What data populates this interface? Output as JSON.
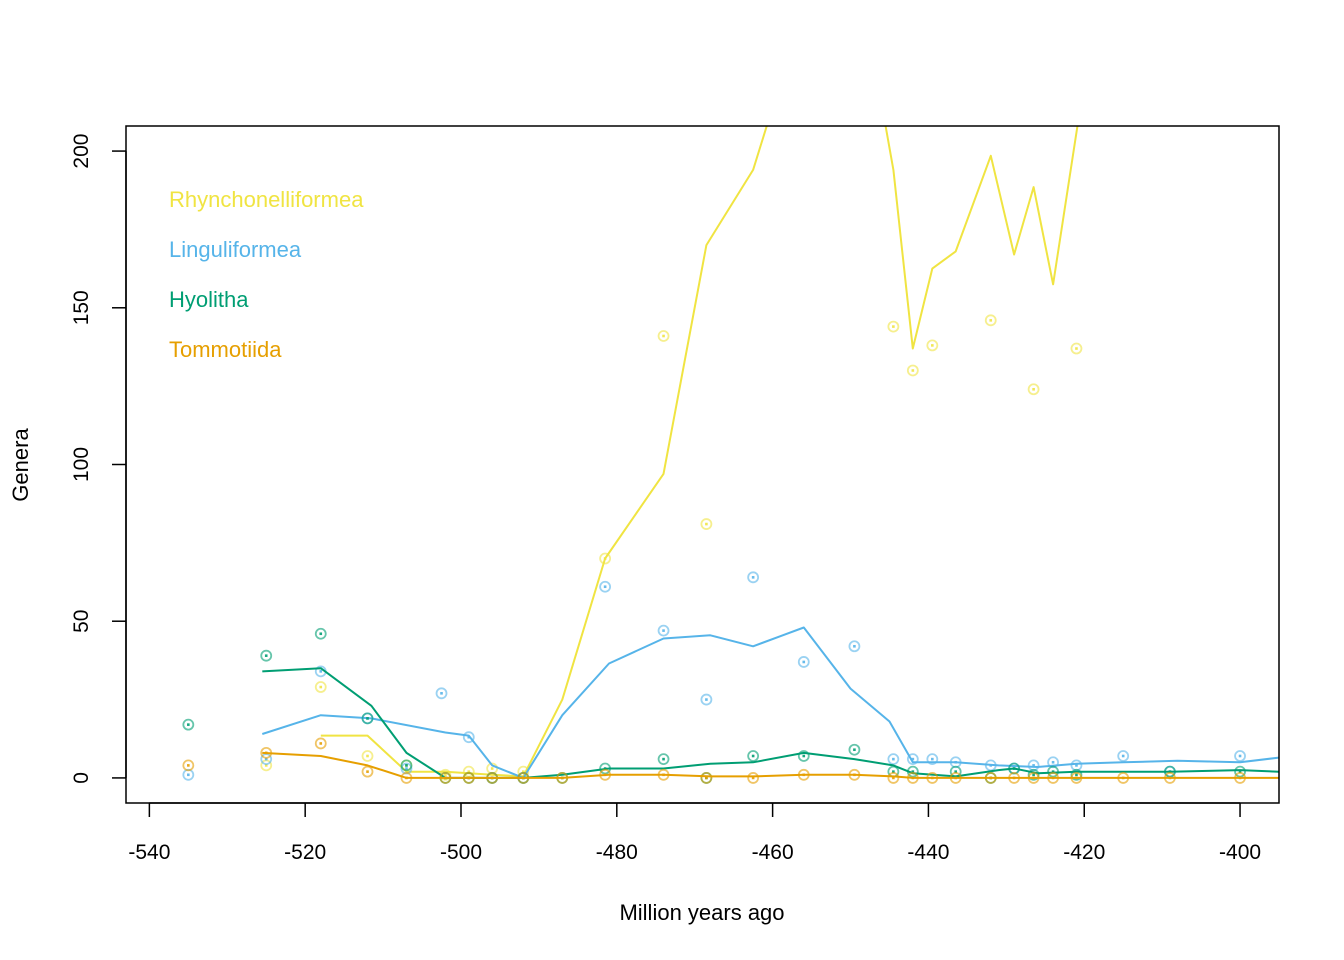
{
  "chart_data": {
    "type": "line",
    "title": "",
    "xlabel": "Million years ago",
    "ylabel": "Genera",
    "xlim": [
      -543,
      -395
    ],
    "ylim": [
      -8,
      208
    ],
    "xticks": [
      -540,
      -520,
      -500,
      -480,
      -460,
      -440,
      -420,
      -400
    ],
    "yticks": [
      0,
      50,
      100,
      150,
      200
    ],
    "grid": false,
    "legend_position": "top-left",
    "series": [
      {
        "name": "Rhynchonelliformea",
        "color": "#F0E442",
        "line": [
          [
            -518,
            13.5
          ],
          [
            -512,
            13.5
          ],
          [
            -507,
            2
          ],
          [
            -502,
            2
          ],
          [
            -499,
            1.5
          ],
          [
            -496,
            1
          ],
          [
            -492,
            0.5
          ],
          [
            -487,
            25
          ],
          [
            -481.5,
            70
          ],
          [
            -474,
            97
          ],
          [
            -468.5,
            170
          ],
          [
            -462.5,
            194
          ],
          [
            -459,
            222
          ],
          [
            -449,
            222
          ],
          [
            -446,
            215
          ],
          [
            -444.5,
            194
          ],
          [
            -442,
            137
          ],
          [
            -439.5,
            162.5
          ],
          [
            -436.5,
            168
          ],
          [
            -432,
            198.5
          ],
          [
            -429,
            167
          ],
          [
            -426.5,
            188.5
          ],
          [
            -424,
            157.5
          ],
          [
            -420,
            222
          ]
        ],
        "points": [
          [
            -525,
            4
          ],
          [
            -518,
            29
          ],
          [
            -512,
            7
          ],
          [
            -507,
            4
          ],
          [
            -502,
            1
          ],
          [
            -499,
            2
          ],
          [
            -496,
            3
          ],
          [
            -492,
            2
          ],
          [
            -481.5,
            70
          ],
          [
            -474,
            141
          ],
          [
            -468.5,
            81
          ],
          [
            -444.5,
            144
          ],
          [
            -442,
            130
          ],
          [
            -439.5,
            138
          ],
          [
            -432,
            146
          ],
          [
            -426.5,
            124
          ],
          [
            -421,
            137
          ]
        ]
      },
      {
        "name": "Linguliformea",
        "color": "#56B4E9",
        "line": [
          [
            -525.5,
            14
          ],
          [
            -518,
            20
          ],
          [
            -511.5,
            19
          ],
          [
            -502,
            14.5
          ],
          [
            -499,
            13.5
          ],
          [
            -496,
            4
          ],
          [
            -492,
            0
          ],
          [
            -487,
            20
          ],
          [
            -481,
            36.5
          ],
          [
            -474,
            44.5
          ],
          [
            -468,
            45.5
          ],
          [
            -462.5,
            42
          ],
          [
            -456,
            48
          ],
          [
            -450,
            28.5
          ],
          [
            -445,
            18
          ],
          [
            -442,
            5
          ],
          [
            -436.5,
            5
          ],
          [
            -431,
            4
          ],
          [
            -426,
            3.5
          ],
          [
            -421,
            4.5
          ],
          [
            -415,
            5
          ],
          [
            -408,
            5.5
          ],
          [
            -400,
            5
          ],
          [
            -395,
            6.5
          ]
        ],
        "points": [
          [
            -535,
            1
          ],
          [
            -525,
            6
          ],
          [
            -518,
            34
          ],
          [
            -512,
            19
          ],
          [
            -507,
            3
          ],
          [
            -502.5,
            27
          ],
          [
            -499,
            13
          ],
          [
            -496,
            0
          ],
          [
            -492,
            0
          ],
          [
            -481.5,
            61
          ],
          [
            -474,
            47
          ],
          [
            -468.5,
            25
          ],
          [
            -462.5,
            64
          ],
          [
            -456,
            37
          ],
          [
            -449.5,
            42
          ],
          [
            -444.5,
            6
          ],
          [
            -442,
            6
          ],
          [
            -439.5,
            6
          ],
          [
            -436.5,
            5
          ],
          [
            -432,
            4
          ],
          [
            -429,
            3
          ],
          [
            -426.5,
            4
          ],
          [
            -424,
            5
          ],
          [
            -421,
            4
          ],
          [
            -415,
            7
          ],
          [
            -409,
            2
          ],
          [
            -400,
            7
          ]
        ]
      },
      {
        "name": "Hyolitha",
        "color": "#009E73",
        "line": [
          [
            -525.5,
            34
          ],
          [
            -518,
            35
          ],
          [
            -511.5,
            23
          ],
          [
            -507,
            8
          ],
          [
            -502,
            0
          ],
          [
            -499,
            0
          ],
          [
            -496,
            0
          ],
          [
            -492,
            0
          ],
          [
            -487,
            1
          ],
          [
            -481,
            3
          ],
          [
            -474,
            3
          ],
          [
            -468,
            4.5
          ],
          [
            -462.5,
            5
          ],
          [
            -456,
            8
          ],
          [
            -449.5,
            6
          ],
          [
            -444.5,
            4
          ],
          [
            -442,
            1.5
          ],
          [
            -436.5,
            0.5
          ],
          [
            -431,
            2.5
          ],
          [
            -429,
            3
          ],
          [
            -426,
            1.5
          ],
          [
            -421,
            2
          ],
          [
            -415,
            2
          ],
          [
            -409,
            2
          ],
          [
            -400,
            2.5
          ],
          [
            -395,
            2
          ]
        ],
        "points": [
          [
            -535,
            17
          ],
          [
            -525,
            39
          ],
          [
            -518,
            46
          ],
          [
            -512,
            19
          ],
          [
            -507,
            4
          ],
          [
            -502,
            0
          ],
          [
            -499,
            0
          ],
          [
            -496,
            0
          ],
          [
            -492,
            0
          ],
          [
            -487,
            0
          ],
          [
            -481.5,
            3
          ],
          [
            -474,
            6
          ],
          [
            -468.5,
            0
          ],
          [
            -462.5,
            7
          ],
          [
            -456,
            7
          ],
          [
            -449.5,
            9
          ],
          [
            -444.5,
            2
          ],
          [
            -442,
            2
          ],
          [
            -436.5,
            2
          ],
          [
            -432,
            0
          ],
          [
            -429,
            3
          ],
          [
            -426.5,
            1
          ],
          [
            -424,
            2
          ],
          [
            -421,
            1
          ],
          [
            -409,
            2
          ],
          [
            -400,
            2
          ]
        ]
      },
      {
        "name": "Tommotiida",
        "color": "#E69F00",
        "line": [
          [
            -525.5,
            8
          ],
          [
            -518,
            7
          ],
          [
            -512,
            4
          ],
          [
            -507,
            0
          ],
          [
            -502,
            0
          ],
          [
            -499,
            0
          ],
          [
            -496,
            0
          ],
          [
            -492,
            0
          ],
          [
            -487,
            0
          ],
          [
            -481,
            1
          ],
          [
            -474,
            1
          ],
          [
            -468,
            0.5
          ],
          [
            -462.5,
            0.5
          ],
          [
            -456,
            1
          ],
          [
            -449.5,
            1
          ],
          [
            -444.5,
            0.5
          ],
          [
            -442,
            0
          ],
          [
            -436.5,
            0
          ],
          [
            -400,
            0
          ],
          [
            -395,
            0
          ]
        ],
        "points": [
          [
            -535,
            4
          ],
          [
            -525,
            8
          ],
          [
            -518,
            11
          ],
          [
            -512,
            2
          ],
          [
            -507,
            0
          ],
          [
            -502,
            0
          ],
          [
            -499,
            0
          ],
          [
            -496,
            0
          ],
          [
            -492,
            0
          ],
          [
            -487,
            0
          ],
          [
            -481.5,
            1
          ],
          [
            -474,
            1
          ],
          [
            -468.5,
            0
          ],
          [
            -462.5,
            0
          ],
          [
            -456,
            1
          ],
          [
            -449.5,
            1
          ],
          [
            -444.5,
            0
          ],
          [
            -442,
            0
          ],
          [
            -439.5,
            0
          ],
          [
            -436.5,
            0
          ],
          [
            -432,
            0
          ],
          [
            -429,
            0
          ],
          [
            -426.5,
            0
          ],
          [
            -424,
            0
          ],
          [
            -421,
            0
          ],
          [
            -415,
            0
          ],
          [
            -409,
            0
          ],
          [
            -400,
            0
          ]
        ]
      }
    ]
  }
}
